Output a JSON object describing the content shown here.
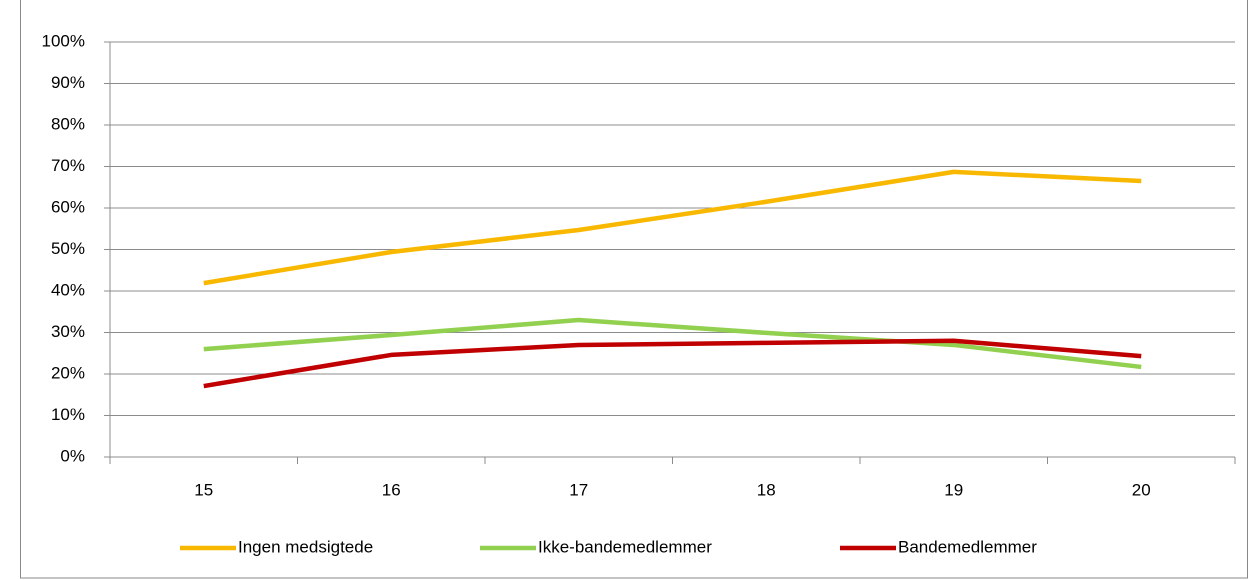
{
  "chart_data": {
    "type": "line",
    "categories": [
      "15",
      "16",
      "17",
      "18",
      "19",
      "20"
    ],
    "series": [
      {
        "name": "Ingen medsigtede",
        "color": "#f9b800",
        "values": [
          41.9,
          49.4,
          54.7,
          61.5,
          68.7,
          66.5
        ]
      },
      {
        "name": "Ikke-bandemedlemmer",
        "color": "#92d050",
        "values": [
          26.0,
          29.4,
          33.0,
          29.9,
          27.0,
          21.7
        ]
      },
      {
        "name": "Bandemedlemmer",
        "color": "#c00000",
        "values": [
          17.1,
          24.6,
          27.0,
          27.5,
          28.0,
          24.3
        ]
      }
    ],
    "ylim": [
      0,
      100
    ],
    "yticks": [
      {
        "value": 0,
        "label": "0%"
      },
      {
        "value": 10,
        "label": "10%"
      },
      {
        "value": 20,
        "label": "20%"
      },
      {
        "value": 30,
        "label": "30%"
      },
      {
        "value": 40,
        "label": "40%"
      },
      {
        "value": 50,
        "label": "50%"
      },
      {
        "value": 60,
        "label": "60%"
      },
      {
        "value": 70,
        "label": "70%"
      },
      {
        "value": 80,
        "label": "80%"
      },
      {
        "value": 90,
        "label": "90%"
      },
      {
        "value": 100,
        "label": "100%"
      }
    ],
    "grid": true,
    "legend": "bottom"
  }
}
